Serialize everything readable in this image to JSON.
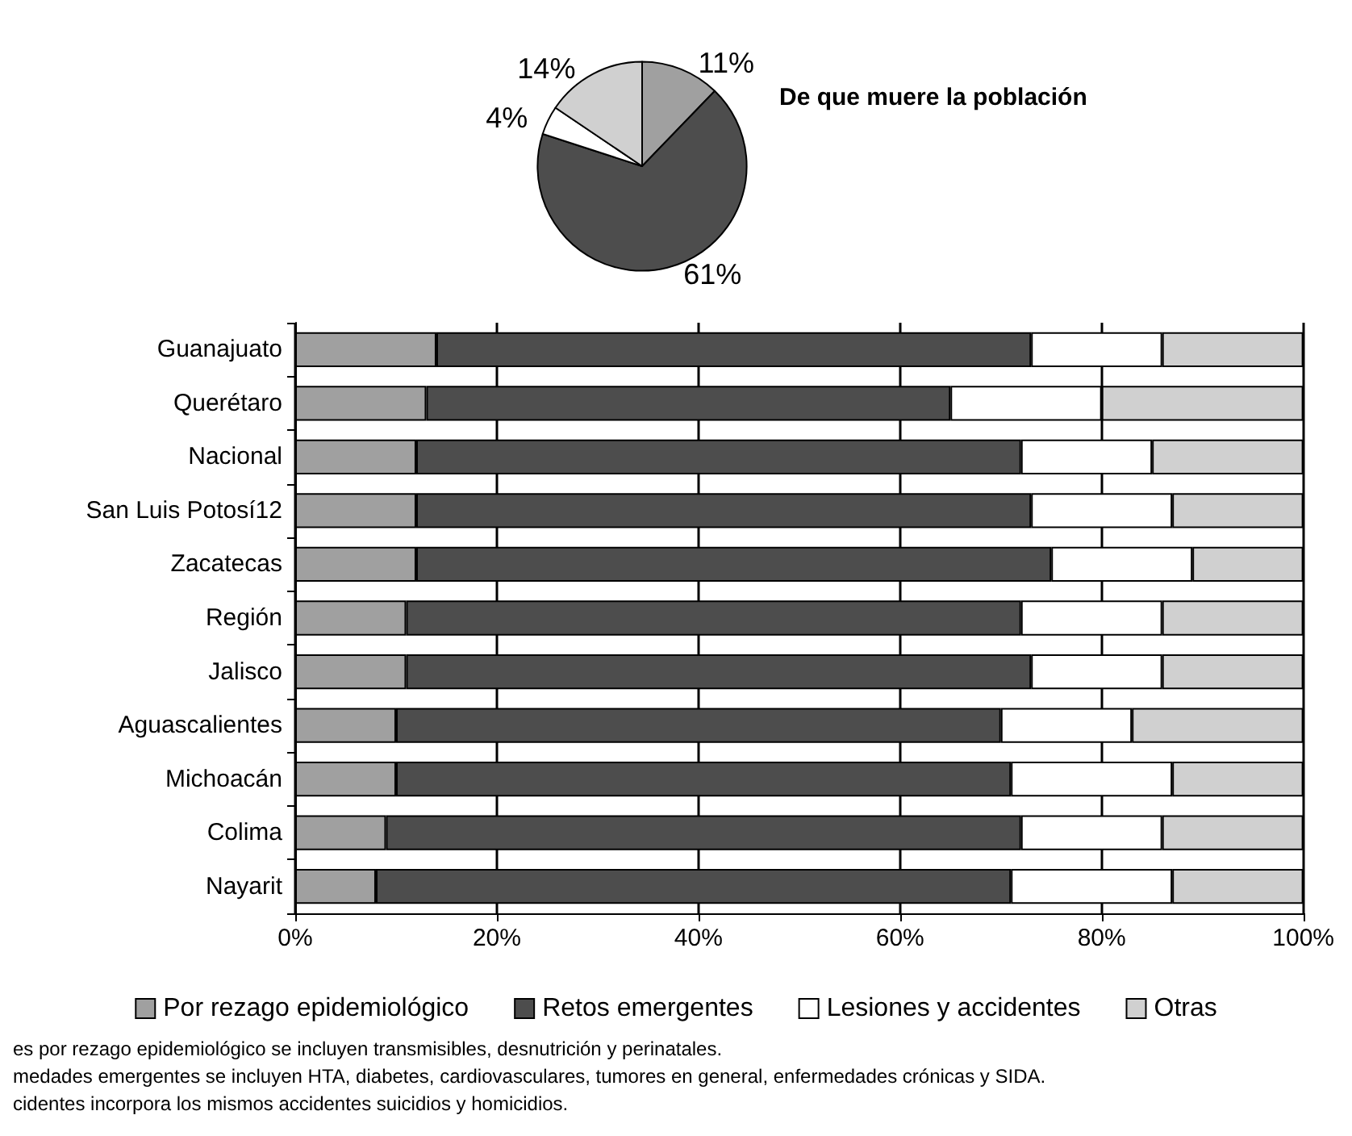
{
  "chart_data": [
    {
      "type": "pie",
      "title": "De que muere la población",
      "categories": [
        null,
        null,
        null,
        null
      ],
      "values": [
        11,
        61,
        4,
        14
      ],
      "value_labels": [
        "11%",
        "61%",
        "4%",
        "14%"
      ],
      "colors": [
        "#a0a0a0",
        "#4d4d4d",
        "#ffffff",
        "#d0d0d0"
      ],
      "legend": false
    },
    {
      "type": "bar",
      "orientation": "horizontal",
      "stacked": true,
      "categories": [
        "Guanajuato",
        "Querétaro",
        "Nacional",
        "San Luis Potosí12",
        "Zacatecas",
        "Región",
        "Jalisco",
        "Aguascalientes",
        "Michoacán",
        "Colima",
        "Nayarit"
      ],
      "series": [
        {
          "name": "Por rezago epidemiológico",
          "color": "#a0a0a0",
          "values": [
            14,
            13,
            12,
            12,
            12,
            11,
            11,
            10,
            10,
            9,
            8
          ]
        },
        {
          "name": "Retos emergentes",
          "color": "#4d4d4d",
          "values": [
            59,
            52,
            60,
            61,
            63,
            61,
            62,
            60,
            61,
            63,
            63
          ]
        },
        {
          "name": "Lesiones y accidentes",
          "color": "#ffffff",
          "values": [
            13,
            15,
            13,
            14,
            14,
            14,
            13,
            13,
            16,
            14,
            16
          ]
        },
        {
          "name": "Otras",
          "color": "#d0d0d0",
          "values": [
            14,
            20,
            15,
            13,
            11,
            14,
            14,
            17,
            13,
            14,
            13
          ]
        }
      ],
      "xlim": [
        0,
        100
      ],
      "xticks": [
        {
          "value": 0,
          "label": "0%"
        },
        {
          "value": 20,
          "label": "20%"
        },
        {
          "value": 40,
          "label": "40%"
        },
        {
          "value": 60,
          "label": "60%"
        },
        {
          "value": 80,
          "label": "80%"
        },
        {
          "value": 100,
          "label": "100%"
        }
      ],
      "grid": "x",
      "legend": "bottom",
      "annotations": [
        "es por rezago epidemiológico se incluyen transmisibles, desnutrición y perinatales.",
        "medades emergentes se incluyen HTA, diabetes, cardiovasculares, tumores en general, enfermedades crónicas y SIDA.",
        "cidentes incorpora los mismos accidentes suicidios y homicidios."
      ]
    }
  ]
}
